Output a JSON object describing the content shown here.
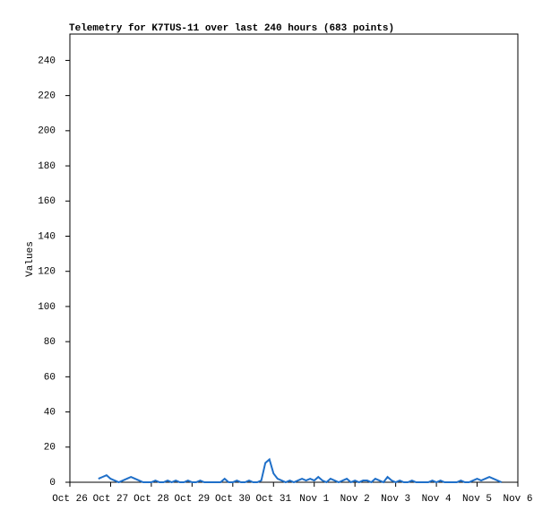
{
  "chart_data": {
    "type": "line",
    "title": "Telemetry for K7TUS-11 over last 240 hours (683 points)",
    "y_label": "Values",
    "color": "#1f6fc8",
    "grid": false,
    "xlim": [
      0,
      11
    ],
    "xticks": [
      {
        "value": 0,
        "label": "Oct 26"
      },
      {
        "value": 1,
        "label": "Oct 27"
      },
      {
        "value": 2,
        "label": "Oct 28"
      },
      {
        "value": 3,
        "label": "Oct 29"
      },
      {
        "value": 4,
        "label": "Oct 30"
      },
      {
        "value": 5,
        "label": "Oct 31"
      },
      {
        "value": 6,
        "label": "Nov 1"
      },
      {
        "value": 7,
        "label": "Nov 2"
      },
      {
        "value": 8,
        "label": "Nov 3"
      },
      {
        "value": 9,
        "label": "Nov 4"
      },
      {
        "value": 10,
        "label": "Nov 5"
      },
      {
        "value": 11,
        "label": "Nov 6"
      }
    ],
    "ylim": [
      0,
      255
    ],
    "yticks": [
      0,
      20,
      40,
      60,
      80,
      100,
      120,
      140,
      160,
      180,
      200,
      220,
      240
    ],
    "x": [
      0.7,
      0.8,
      0.9,
      1.0,
      1.1,
      1.2,
      1.3,
      1.4,
      1.5,
      1.6,
      1.7,
      1.8,
      1.9,
      2.0,
      2.1,
      2.2,
      2.3,
      2.4,
      2.5,
      2.6,
      2.7,
      2.8,
      2.9,
      3.0,
      3.1,
      3.2,
      3.3,
      3.4,
      3.5,
      3.6,
      3.7,
      3.8,
      3.9,
      4.0,
      4.1,
      4.2,
      4.3,
      4.4,
      4.5,
      4.6,
      4.7,
      4.8,
      4.9,
      5.0,
      5.1,
      5.2,
      5.3,
      5.4,
      5.5,
      5.6,
      5.7,
      5.8,
      5.9,
      6.0,
      6.1,
      6.2,
      6.3,
      6.4,
      6.5,
      6.6,
      6.7,
      6.8,
      6.9,
      7.0,
      7.1,
      7.2,
      7.3,
      7.4,
      7.5,
      7.6,
      7.7,
      7.8,
      7.9,
      8.0,
      8.1,
      8.2,
      8.3,
      8.4,
      8.5,
      8.6,
      8.7,
      8.8,
      8.9,
      9.0,
      9.1,
      9.2,
      9.3,
      9.4,
      9.5,
      9.6,
      9.7,
      9.8,
      9.9,
      10.0,
      10.1,
      10.2,
      10.3,
      10.4,
      10.5,
      10.6
    ],
    "values": [
      2,
      3,
      4,
      2,
      1,
      0,
      1,
      2,
      3,
      2,
      1,
      0,
      0,
      0,
      1,
      0,
      0,
      1,
      0,
      1,
      0,
      0,
      1,
      0,
      0,
      1,
      0,
      0,
      0,
      0,
      0,
      2,
      0,
      0,
      1,
      0,
      0,
      1,
      0,
      0,
      1,
      11,
      13,
      5,
      2,
      1,
      0,
      1,
      0,
      1,
      2,
      1,
      2,
      1,
      3,
      1,
      0,
      2,
      1,
      0,
      1,
      2,
      0,
      1,
      0,
      1,
      1,
      0,
      2,
      1,
      0,
      3,
      1,
      0,
      1,
      0,
      0,
      1,
      0,
      0,
      0,
      0,
      1,
      0,
      1,
      0,
      0,
      0,
      0,
      1,
      0,
      0,
      1,
      2,
      1,
      2,
      3,
      2,
      1,
      0
    ]
  }
}
